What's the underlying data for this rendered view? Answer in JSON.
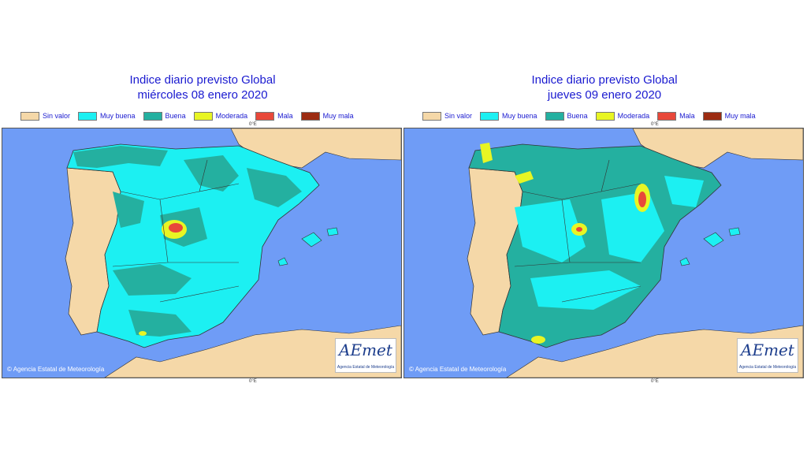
{
  "legend": {
    "items": [
      {
        "label": "Sin valor",
        "color": "#f5d8a8"
      },
      {
        "label": "Muy buena",
        "color": "#1cf0f2"
      },
      {
        "label": "Buena",
        "color": "#24b0a0"
      },
      {
        "label": "Moderada",
        "color": "#e8f524"
      },
      {
        "label": "Mala",
        "color": "#e8483a"
      },
      {
        "label": "Muy mala",
        "color": "#9c2c12"
      }
    ]
  },
  "axis_tick": "0°E",
  "credit": "Agencia Estatal de Meteorología",
  "logo": {
    "word": "AEmet",
    "subtitle": "Agencia Estatal de Meteorología"
  },
  "maps": [
    {
      "title_line1": "Indice diario previsto Global",
      "title_line2": "miércoles 08 enero 2020"
    },
    {
      "title_line1": "Indice diario previsto Global",
      "title_line2": "jueves 09 enero 2020"
    }
  ],
  "colors": {
    "sea": "#6f9cf6",
    "land_outside": "#f5d8a8",
    "border": "#333333"
  }
}
